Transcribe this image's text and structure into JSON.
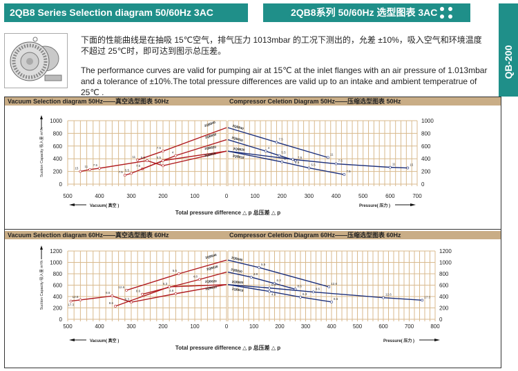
{
  "header": {
    "title_en": "2QB8 Series Selection diagram 50/60Hz 3AC",
    "title_cn": "2QB8系列 50/60Hz 选型图表 3AC",
    "side_tab": "QB-200",
    "dots_icon": "four-dots-icon",
    "accent_color": "#1f8f89"
  },
  "intro": {
    "cn": "下面的性能曲线是在抽吸 15℃空气，排气压力 1013mbar 的工况下测出的，允差 ±10%，吸入空气和环境温度不超过 25℃时，即可达到图示总压差。",
    "en": "The performance curves are valid for pumping air at 15℃ at the inlet flanges with an air pressure of 1.013mbar and a tolerance of ±10%.The total pressure differences are valid up to an intake and ambient temperatrue of 25℃ ."
  },
  "colors": {
    "vacuum": "#b01c20",
    "pressure": "#1c2f7a",
    "grid": "#d8b98c",
    "band": "#c9ad86"
  },
  "labels": {
    "ylabel": "Suction Capacity 吸入量  m³/h",
    "vacuum_arrow": "Vacuum( 真空 )",
    "pressure_arrow": "Pressure( 压力 )",
    "xlabel": "Total pressure difference △ p 总压差  △ p"
  },
  "chart_data": [
    {
      "type": "line",
      "band_left": "Vacuum Selection diagram 50Hz——真空选型图表 50Hz",
      "band_right": "Compressor Celetion Diagram 50Hz——压缩选型图表 50Hz",
      "ylim": [
        0,
        1000
      ],
      "yticks": [
        "0",
        "200",
        "400",
        "600",
        "800",
        "1000"
      ],
      "vac_xlim": [
        500,
        0
      ],
      "vac_xticks": [
        "500",
        "400",
        "300",
        "200",
        "100",
        "0"
      ],
      "prs_xlim": [
        0,
        700
      ],
      "prs_xticks": [
        "0",
        "100",
        "200",
        "300",
        "400",
        "500",
        "600",
        "700"
      ],
      "vacuum_series": [
        {
          "name": "2QB840",
          "points": [
            [
              0,
              890
            ],
            [
              200,
              520
            ],
            [
              280,
              380
            ]
          ],
          "labels": [
            "",
            "7.5",
            "11"
          ]
        },
        {
          "name": "2QB830",
          "points": [
            [
              0,
              700
            ],
            [
              160,
              450
            ],
            [
              265,
              240
            ]
          ],
          "labels": [
            "",
            "4",
            "7.5"
          ]
        },
        {
          "name": "2QB820",
          "points": [
            [
              0,
              520
            ],
            [
              200,
              370
            ],
            [
              300,
              170
            ],
            [
              320,
              140
            ]
          ],
          "labels": [
            "",
            "5.5",
            "5.5",
            "7.5"
          ]
        },
        {
          "name": "2QB810",
          "points": [
            [
              0,
              520
            ],
            [
              200,
              290
            ],
            [
              250,
              370
            ],
            [
              400,
              250
            ],
            [
              430,
              230
            ],
            [
              460,
              200
            ]
          ],
          "labels": [
            "",
            "4",
            "5.5",
            "7.5",
            "11",
            "15"
          ]
        }
      ],
      "pressure_series": [
        {
          "name": "2QB840",
          "points": [
            [
              0,
              890
            ],
            [
              180,
              660
            ],
            [
              370,
              420
            ]
          ],
          "labels": [
            "",
            "7.5",
            "11"
          ]
        },
        {
          "name": "2QB830",
          "points": [
            [
              0,
              700
            ],
            [
              140,
              520
            ],
            [
              190,
              450
            ],
            [
              250,
              370
            ]
          ],
          "labels": [
            "",
            "4",
            "5.5",
            "7.5"
          ]
        },
        {
          "name": "2QB820",
          "points": [
            [
              0,
              520
            ],
            [
              240,
              390
            ],
            [
              400,
              320
            ],
            [
              600,
              265
            ],
            [
              665,
              255
            ]
          ],
          "labels": [
            "",
            "5.5",
            "7.5",
            "11",
            "15"
          ]
        },
        {
          "name": "2QB810",
          "points": [
            [
              0,
              520
            ],
            [
              200,
              350
            ],
            [
              300,
              255
            ],
            [
              430,
              150
            ]
          ],
          "labels": [
            "",
            "4",
            "5.5",
            "7.5"
          ]
        }
      ]
    },
    {
      "type": "line",
      "band_left": "Vacuum Selection diagram 60Hz——真空选型图表 60Hz",
      "band_right": "Compressor Celetion Diagram 60Hz——压缩选型图表 60Hz",
      "ylim": [
        0,
        1200
      ],
      "yticks": [
        "0",
        "200",
        "400",
        "600",
        "800",
        "1000",
        "1200"
      ],
      "vac_xlim": [
        500,
        0
      ],
      "vac_xticks": [
        "500",
        "400",
        "300",
        "200",
        "100",
        "0"
      ],
      "prs_xlim": [
        0,
        800
      ],
      "prs_xticks": [
        "0",
        "100",
        "200",
        "300",
        "400",
        "500",
        "600",
        "700",
        "800"
      ],
      "vacuum_series": [
        {
          "name": "2QB840",
          "points": [
            [
              0,
              1040
            ],
            [
              150,
              800
            ],
            [
              315,
              510
            ]
          ],
          "labels": [
            "",
            "5.5",
            "12.6"
          ]
        },
        {
          "name": "2QB830",
          "points": [
            [
              0,
              830
            ],
            [
              85,
              700
            ],
            [
              265,
              440
            ]
          ],
          "labels": [
            "",
            "4.8",
            "8.6"
          ]
        },
        {
          "name": "2QB820",
          "points": [
            [
              0,
              610
            ],
            [
              180,
              570
            ],
            [
              350,
              230
            ]
          ],
          "labels": [
            "",
            "6.3",
            "8.6"
          ]
        },
        {
          "name": "2QB810",
          "points": [
            [
              0,
              610
            ],
            [
              160,
              450
            ],
            [
              300,
              300
            ],
            [
              360,
              410
            ],
            [
              460,
              340
            ],
            [
              490,
              320
            ]
          ],
          "labels": [
            "",
            "4.8",
            "6.3",
            "8.6",
            "12.6",
            "17.3"
          ]
        }
      ],
      "pressure_series": [
        {
          "name": "2QB840",
          "points": [
            [
              0,
              1040
            ],
            [
              120,
              910
            ],
            [
              390,
              570
            ]
          ],
          "labels": [
            "",
            "5.5",
            "12.6"
          ]
        },
        {
          "name": "2QB830",
          "points": [
            [
              0,
              830
            ],
            [
              90,
              740
            ],
            [
              180,
              630
            ],
            [
              260,
              530
            ]
          ],
          "labels": [
            "",
            "4.8",
            "6.3",
            "8.6"
          ]
        },
        {
          "name": "2QB820",
          "points": [
            [
              0,
              610
            ],
            [
              160,
              550
            ],
            [
              330,
              480
            ],
            [
              600,
              380
            ],
            [
              750,
              335
            ]
          ],
          "labels": [
            "",
            "6.3",
            "8.6",
            "12.6",
            "17.3"
          ]
        },
        {
          "name": "2QB810",
          "points": [
            [
              0,
              610
            ],
            [
              160,
              490
            ],
            [
              280,
              390
            ],
            [
              400,
              305
            ]
          ],
          "labels": [
            "",
            "4.8",
            "6.3",
            "8.6"
          ]
        }
      ]
    }
  ]
}
